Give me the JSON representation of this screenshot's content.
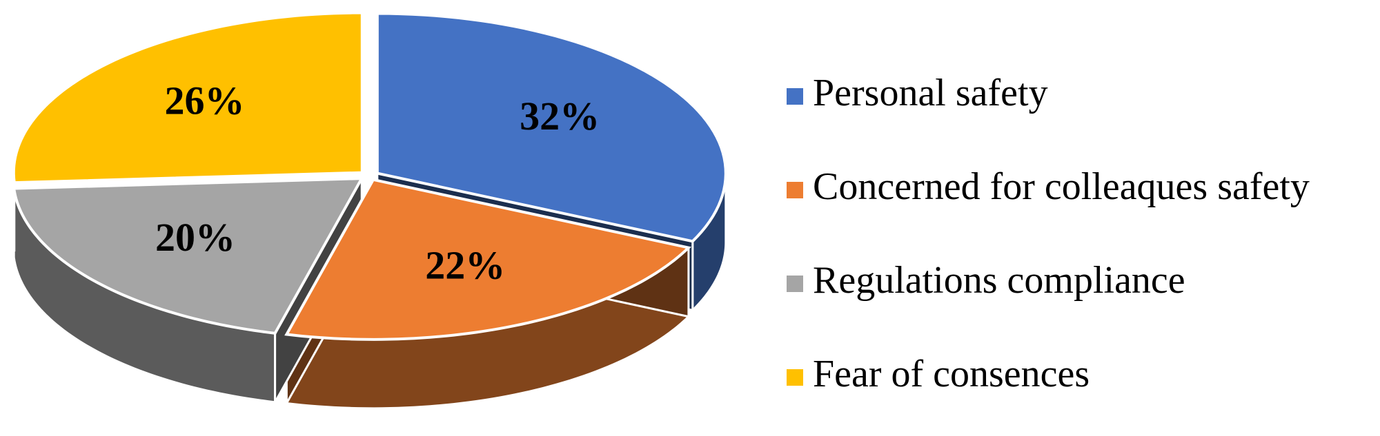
{
  "chart_data": {
    "type": "pie",
    "categories": [
      "Personal safety",
      "Concerned for colleaques safety",
      "Regulations compliance",
      "Fear of consences"
    ],
    "values": [
      32,
      22,
      20,
      26
    ],
    "value_labels": [
      "32%",
      "22%",
      "20%",
      "26%"
    ],
    "colors": [
      "#4472c4",
      "#ed7d31",
      "#a5a5a5",
      "#ffc000"
    ],
    "legend": "right"
  }
}
